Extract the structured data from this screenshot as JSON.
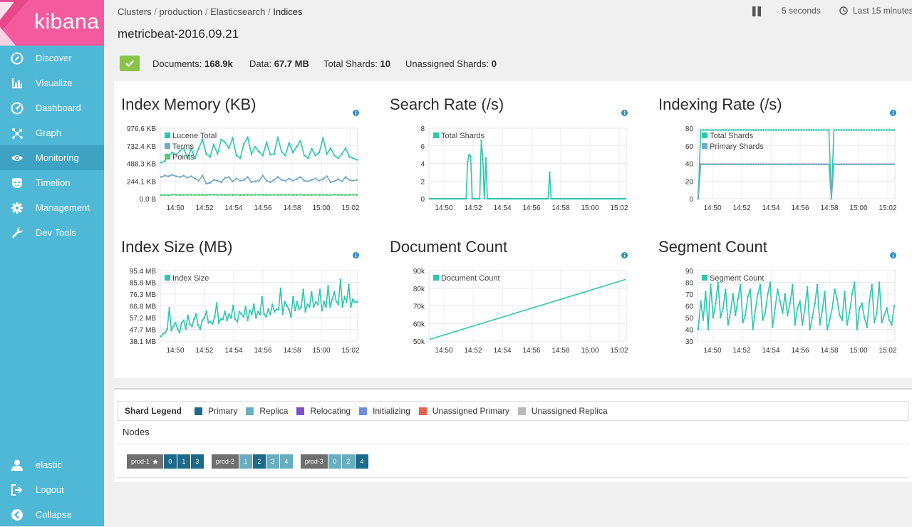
{
  "app": {
    "logo_text": "kibana"
  },
  "nav": [
    {
      "label": "Discover",
      "icon": "compass-icon"
    },
    {
      "label": "Visualize",
      "icon": "bar-chart-icon"
    },
    {
      "label": "Dashboard",
      "icon": "dashboard-gauge-icon"
    },
    {
      "label": "Graph",
      "icon": "graph-network-icon"
    },
    {
      "label": "Monitoring",
      "icon": "eye-icon",
      "active": true
    },
    {
      "label": "Timelion",
      "icon": "timelion-mask-icon"
    },
    {
      "label": "Management",
      "icon": "gear-icon"
    },
    {
      "label": "Dev Tools",
      "icon": "wrench-icon"
    }
  ],
  "nav_bottom": [
    {
      "label": "elastic",
      "icon": "user-icon"
    },
    {
      "label": "Logout",
      "icon": "logout-icon"
    },
    {
      "label": "Collapse",
      "icon": "collapse-icon"
    }
  ],
  "breadcrumb": [
    "Clusters",
    "production",
    "Elasticsearch",
    "Indices"
  ],
  "page_title": "metricbeat-2016.09.21",
  "toolbar": {
    "refresh_interval": "5 seconds",
    "time_range": "Last 15 minutes"
  },
  "summary": {
    "documents_label": "Documents:",
    "documents_value": "168.9k",
    "data_label": "Data:",
    "data_value": "67.7 MB",
    "total_shards_label": "Total Shards:",
    "total_shards_value": "10",
    "unassigned_label": "Unassigned Shards:",
    "unassigned_value": "0",
    "status": "green"
  },
  "colors": {
    "accent": "#2ec7b0",
    "terms": "#74a9c4",
    "points": "#54c875",
    "primary": "#1b6a8a",
    "replica": "#69adc0",
    "relocating": "#7b52c4",
    "initializing": "#6e8fd6",
    "unassigned_primary": "#e8614b",
    "unassigned_replica": "#b7b7b7",
    "sidebar": "#4fb8d6",
    "logo_bg": "#f45b9e"
  },
  "chart_data": [
    {
      "type": "line",
      "title": "Index Memory (KB)",
      "x_ticks": [
        "14:50",
        "14:52",
        "14:54",
        "14:56",
        "14:58",
        "15:00",
        "15:02"
      ],
      "y_ticks": [
        "976.6 KB",
        "732.4 KB",
        "488.3 KB",
        "244.1 KB",
        "0.0 B"
      ],
      "ylim": [
        0,
        976.6
      ],
      "series": [
        {
          "name": "Lucene Total",
          "values": [
            500,
            520,
            600,
            640,
            610,
            660,
            700,
            560,
            690,
            560,
            700,
            820,
            620,
            580,
            750,
            620,
            820,
            780,
            700,
            840,
            600,
            560,
            760,
            850,
            620,
            720,
            650,
            600,
            780,
            610,
            620,
            850,
            650,
            600,
            770,
            640,
            720,
            800,
            600,
            560,
            690,
            600,
            640,
            840,
            620,
            700,
            600,
            560,
            620,
            700,
            580,
            560,
            540
          ]
        },
        {
          "name": "Terms",
          "values": [
            300,
            320,
            310,
            330,
            310,
            300,
            320,
            290,
            310,
            280,
            250,
            320,
            210,
            220,
            260,
            250,
            230,
            290,
            300,
            240,
            280,
            250,
            260,
            300,
            230,
            240,
            250,
            320,
            250,
            230,
            260,
            300,
            260,
            250,
            280,
            250,
            270,
            300,
            250,
            240,
            260,
            280,
            250,
            270,
            310,
            230,
            240,
            270,
            240,
            300,
            260,
            250,
            260
          ]
        },
        {
          "name": "Points",
          "values": [
            50,
            52,
            48,
            55,
            54,
            50,
            53,
            52,
            54,
            51,
            53,
            52,
            50,
            55,
            53,
            52,
            54,
            51,
            53,
            52,
            54,
            50,
            52,
            53,
            51,
            54,
            52,
            53,
            50,
            52,
            54,
            51,
            53,
            52,
            55,
            51,
            52,
            54,
            50,
            53,
            52,
            54,
            51,
            53,
            52,
            50,
            54,
            52,
            53,
            51,
            52,
            54,
            53
          ]
        }
      ]
    },
    {
      "type": "line",
      "title": "Search Rate (/s)",
      "x_ticks": [
        "14:50",
        "14:52",
        "14:54",
        "14:56",
        "14:58",
        "15:00",
        "15:02"
      ],
      "y_ticks": [
        "8",
        "6",
        "4",
        "2",
        "0"
      ],
      "ylim": [
        0,
        8
      ],
      "series": [
        {
          "name": "Total Shards",
          "values": [
            0,
            0,
            0,
            0,
            0,
            0,
            0,
            0,
            0,
            0,
            0,
            0,
            0,
            0,
            0,
            0,
            0,
            0,
            0,
            0,
            0,
            0,
            0,
            0,
            0,
            4.2,
            5,
            4.8,
            0,
            0,
            0,
            0,
            0,
            0,
            6.6,
            4.5,
            0,
            4.6,
            0,
            0,
            0,
            0,
            0,
            0,
            0,
            0,
            0,
            0,
            0,
            0,
            0,
            0,
            0,
            0,
            0,
            0,
            0,
            0,
            0,
            0,
            0,
            0,
            0,
            0,
            0,
            0,
            0,
            0,
            0,
            0,
            0,
            0,
            0,
            0,
            0,
            0,
            0,
            0,
            0,
            3,
            0,
            0,
            0,
            0,
            0,
            0,
            0,
            0,
            0,
            0,
            0,
            0,
            0,
            0,
            0,
            0,
            0,
            0,
            0,
            0,
            0,
            0,
            0,
            0,
            0,
            0,
            0,
            0,
            0,
            0,
            0,
            0,
            0,
            0,
            0,
            0,
            0,
            0,
            0,
            0,
            0,
            0,
            0,
            0,
            0,
            0,
            0,
            0,
            0,
            0
          ]
        }
      ]
    },
    {
      "type": "line",
      "title": "Indexing Rate (/s)",
      "x_ticks": [
        "14:50",
        "14:52",
        "14:54",
        "14:56",
        "14:58",
        "15:00",
        "15:02"
      ],
      "y_ticks": [
        "80",
        "60",
        "40",
        "20",
        "0"
      ],
      "ylim": [
        0,
        80
      ],
      "series": [
        {
          "name": "Total Shards",
          "values": [
            0,
            78,
            78,
            78,
            78,
            78,
            78,
            78,
            78,
            78,
            78,
            78,
            78,
            78,
            78,
            78,
            78,
            78,
            78,
            78,
            78,
            78,
            78,
            78,
            78,
            78,
            78,
            78,
            78,
            78,
            78,
            78,
            78,
            78,
            78,
            78,
            78,
            78,
            78,
            78,
            78,
            78,
            78,
            78,
            78,
            78,
            78,
            78,
            78,
            78,
            78,
            78,
            78,
            0,
            78,
            78,
            78,
            78,
            78,
            78,
            78,
            78,
            78,
            78,
            78,
            78,
            78,
            78,
            78,
            78,
            78,
            78,
            78,
            78,
            78,
            78,
            78,
            78,
            78
          ]
        },
        {
          "name": "Primary Shards",
          "values": [
            0,
            39,
            39,
            39,
            39,
            39,
            39,
            39,
            39,
            39,
            39,
            39,
            39,
            39,
            39,
            39,
            39,
            39,
            39,
            39,
            39,
            39,
            39,
            39,
            39,
            39,
            39,
            39,
            39,
            39,
            39,
            39,
            39,
            39,
            39,
            39,
            39,
            39,
            39,
            39,
            39,
            39,
            39,
            39,
            39,
            39,
            39,
            39,
            39,
            39,
            39,
            39,
            39,
            0,
            39,
            39,
            39,
            39,
            39,
            39,
            39,
            39,
            39,
            39,
            39,
            39,
            39,
            39,
            39,
            39,
            39,
            39,
            39,
            39,
            39,
            39,
            39,
            39,
            39
          ]
        }
      ]
    },
    {
      "type": "line",
      "title": "Index Size (MB)",
      "x_ticks": [
        "14:50",
        "14:52",
        "14:54",
        "14:56",
        "14:58",
        "15:00",
        "15:02"
      ],
      "y_ticks": [
        "95.4 MB",
        "85.8 MB",
        "76.3 MB",
        "66.8 MB",
        "57.2 MB",
        "47.7 MB",
        "38.1 MB"
      ],
      "ylim": [
        38.1,
        95.4
      ],
      "series": [
        {
          "name": "Index Size",
          "values": [
            42,
            44,
            45,
            48,
            65,
            47,
            50,
            53,
            48,
            45,
            53,
            55,
            48,
            59,
            52,
            50,
            56,
            60,
            51,
            48,
            55,
            57,
            62,
            53,
            54,
            52,
            58,
            69,
            53,
            56,
            56,
            62,
            55,
            60,
            57,
            67,
            56,
            54,
            62,
            60,
            58,
            66,
            55,
            63,
            60,
            68,
            57,
            62,
            60,
            74,
            60,
            58,
            64,
            60,
            68,
            62,
            64,
            64,
            81,
            60,
            70,
            67,
            64,
            58,
            74,
            63,
            70,
            64,
            66,
            80,
            62,
            68,
            66,
            78,
            66,
            70,
            68,
            80,
            63,
            70,
            66,
            83,
            66,
            72,
            78,
            70,
            68,
            88,
            66,
            74,
            70,
            84,
            66,
            72,
            70,
            70
          ]
        }
      ]
    },
    {
      "type": "line",
      "title": "Document Count",
      "x_ticks": [
        "14:50",
        "14:52",
        "14:54",
        "14:56",
        "14:58",
        "15:00",
        "15:02"
      ],
      "y_ticks": [
        "90k",
        "80k",
        "70k",
        "60k",
        "50k"
      ],
      "ylim": [
        50000,
        90000
      ],
      "series": [
        {
          "name": "Document Count",
          "values": [
            51000,
            85000
          ]
        }
      ]
    },
    {
      "type": "line",
      "title": "Segment Count",
      "x_ticks": [
        "14:50",
        "14:52",
        "14:54",
        "14:56",
        "14:58",
        "15:00",
        "15:02"
      ],
      "y_ticks": [
        "90",
        "80",
        "70",
        "60",
        "50",
        "40",
        "30"
      ],
      "ylim": [
        30,
        90
      ],
      "series": [
        {
          "name": "Segment Count",
          "values": [
            40,
            64,
            48,
            72,
            40,
            78,
            50,
            62,
            80,
            50,
            58,
            74,
            44,
            55,
            70,
            52,
            66,
            78,
            46,
            52,
            68,
            74,
            40,
            56,
            70,
            78,
            48,
            54,
            70,
            80,
            42,
            58,
            74,
            64,
            54,
            70,
            52,
            62,
            78,
            44,
            58,
            64,
            44,
            58,
            76,
            40,
            50,
            62,
            78,
            44,
            56,
            72,
            40,
            48,
            58,
            74,
            66,
            52,
            48,
            72,
            44,
            54,
            70,
            80,
            40,
            58,
            62,
            50,
            42,
            64,
            78,
            46,
            54,
            80,
            46,
            52,
            58,
            48,
            44,
            60
          ]
        }
      ]
    }
  ],
  "shard_legend": {
    "title": "Shard Legend",
    "items": [
      {
        "label": "Primary",
        "color": "#1b6a8a"
      },
      {
        "label": "Replica",
        "color": "#69adc0"
      },
      {
        "label": "Relocating",
        "color": "#7b52c4"
      },
      {
        "label": "Initializing",
        "color": "#6e8fd6"
      },
      {
        "label": "Unassigned Primary",
        "color": "#e8614b"
      },
      {
        "label": "Unassigned Replica",
        "color": "#b7b7b7"
      }
    ]
  },
  "nodes": {
    "title": "Nodes",
    "items": [
      {
        "name": "prod-1",
        "master": true,
        "shards": [
          {
            "id": "0",
            "type": "primary"
          },
          {
            "id": "1",
            "type": "primary"
          },
          {
            "id": "3",
            "type": "primary"
          }
        ]
      },
      {
        "name": "prod-2",
        "master": false,
        "shards": [
          {
            "id": "1",
            "type": "replica"
          },
          {
            "id": "2",
            "type": "primary"
          },
          {
            "id": "3",
            "type": "replica"
          },
          {
            "id": "4",
            "type": "replica"
          }
        ]
      },
      {
        "name": "prod-3",
        "master": false,
        "shards": [
          {
            "id": "0",
            "type": "replica"
          },
          {
            "id": "2",
            "type": "replica"
          },
          {
            "id": "4",
            "type": "primary"
          }
        ]
      }
    ]
  }
}
